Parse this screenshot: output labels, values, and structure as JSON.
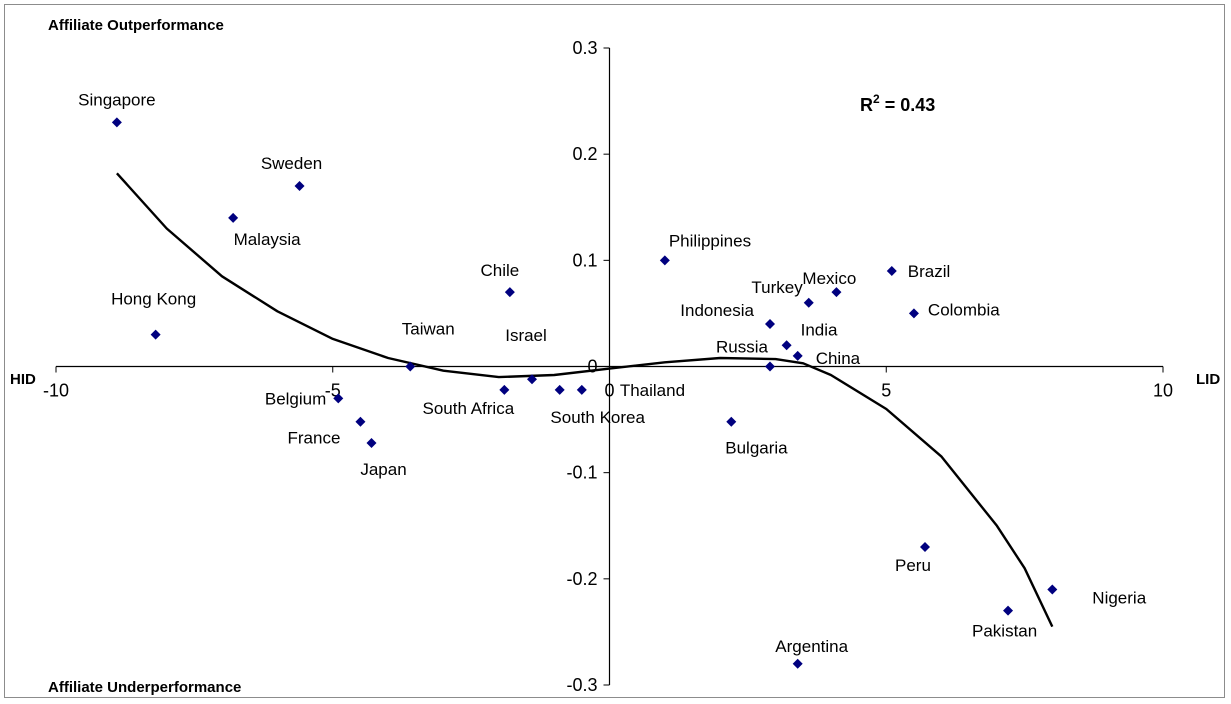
{
  "chart_data": {
    "type": "scatter",
    "title": "",
    "xlim": [
      -10,
      10
    ],
    "ylim": [
      -0.3,
      0.3
    ],
    "x_ticks": [
      -10,
      -5,
      0,
      5,
      10
    ],
    "x_tick_labels": [
      "-10",
      "-5",
      "0",
      "5",
      "10"
    ],
    "y_ticks": [
      0.3,
      0.2,
      0.1,
      0,
      -0.1,
      -0.2,
      -0.3
    ],
    "y_tick_labels": [
      "0.3",
      "0.2",
      "0.1",
      "0",
      "-0.1",
      "-0.2",
      "-0.3"
    ],
    "axis_end_labels": {
      "left": "HID",
      "right": "LID"
    },
    "corner_labels": {
      "top": "Affiliate Outperformance",
      "bottom": "Affiliate Underperformance"
    },
    "r_squared": {
      "text": "R",
      "sup": "2",
      "value": " = 0.43"
    },
    "marker_color": "#00007f",
    "trend_color": "#000000",
    "grid": false,
    "points": [
      {
        "label": "Singapore",
        "x": -8.9,
        "y": 0.23
      },
      {
        "label": "Sweden",
        "x": -5.6,
        "y": 0.17
      },
      {
        "label": "Malaysia",
        "x": -6.8,
        "y": 0.14
      },
      {
        "label": "Hong Kong",
        "x": -8.2,
        "y": 0.03
      },
      {
        "label": "Taiwan",
        "x": -3.6,
        "y": 0.0
      },
      {
        "label": "Chile",
        "x": -1.8,
        "y": 0.07
      },
      {
        "label": "Israel",
        "x": -1.4,
        "y": -0.012
      },
      {
        "label": "South Africa",
        "x": -1.9,
        "y": -0.022
      },
      {
        "label": "South Korea",
        "x": -0.9,
        "y": -0.022
      },
      {
        "label": "Thailand",
        "x": -0.5,
        "y": -0.022
      },
      {
        "label": "Belgium",
        "x": -4.9,
        "y": -0.03
      },
      {
        "label": "France",
        "x": -4.5,
        "y": -0.052
      },
      {
        "label": "Japan",
        "x": -4.3,
        "y": -0.072
      },
      {
        "label": "Philippines",
        "x": 1.0,
        "y": 0.1
      },
      {
        "label": "Turkey",
        "x": 3.6,
        "y": 0.06
      },
      {
        "label": "Mexico",
        "x": 4.1,
        "y": 0.07
      },
      {
        "label": "Brazil",
        "x": 5.1,
        "y": 0.09
      },
      {
        "label": "Colombia",
        "x": 5.5,
        "y": 0.05
      },
      {
        "label": "Indonesia",
        "x": 2.9,
        "y": 0.04
      },
      {
        "label": "India",
        "x": 3.2,
        "y": 0.02
      },
      {
        "label": "China",
        "x": 3.4,
        "y": 0.01
      },
      {
        "label": "Russia",
        "x": 2.9,
        "y": 0.0
      },
      {
        "label": "Bulgaria",
        "x": 2.2,
        "y": -0.052
      },
      {
        "label": "Peru",
        "x": 5.7,
        "y": -0.17
      },
      {
        "label": "Pakistan",
        "x": 7.2,
        "y": -0.23
      },
      {
        "label": "Nigeria",
        "x": 8.0,
        "y": -0.21
      },
      {
        "label": "Argentina",
        "x": 3.4,
        "y": -0.28
      }
    ],
    "trend_line": [
      {
        "x": -8.9,
        "y": 0.182
      },
      {
        "x": -8.0,
        "y": 0.13
      },
      {
        "x": -7.0,
        "y": 0.085
      },
      {
        "x": -6.0,
        "y": 0.052
      },
      {
        "x": -5.0,
        "y": 0.026
      },
      {
        "x": -4.0,
        "y": 0.008
      },
      {
        "x": -3.0,
        "y": -0.004
      },
      {
        "x": -2.0,
        "y": -0.01
      },
      {
        "x": -1.0,
        "y": -0.008
      },
      {
        "x": 0.0,
        "y": -0.002
      },
      {
        "x": 1.0,
        "y": 0.004
      },
      {
        "x": 2.0,
        "y": 0.008
      },
      {
        "x": 3.0,
        "y": 0.007
      },
      {
        "x": 3.5,
        "y": 0.003
      },
      {
        "x": 4.0,
        "y": -0.008
      },
      {
        "x": 5.0,
        "y": -0.04
      },
      {
        "x": 6.0,
        "y": -0.085
      },
      {
        "x": 7.0,
        "y": -0.15
      },
      {
        "x": 7.5,
        "y": -0.19
      },
      {
        "x": 8.0,
        "y": -0.245
      }
    ]
  }
}
